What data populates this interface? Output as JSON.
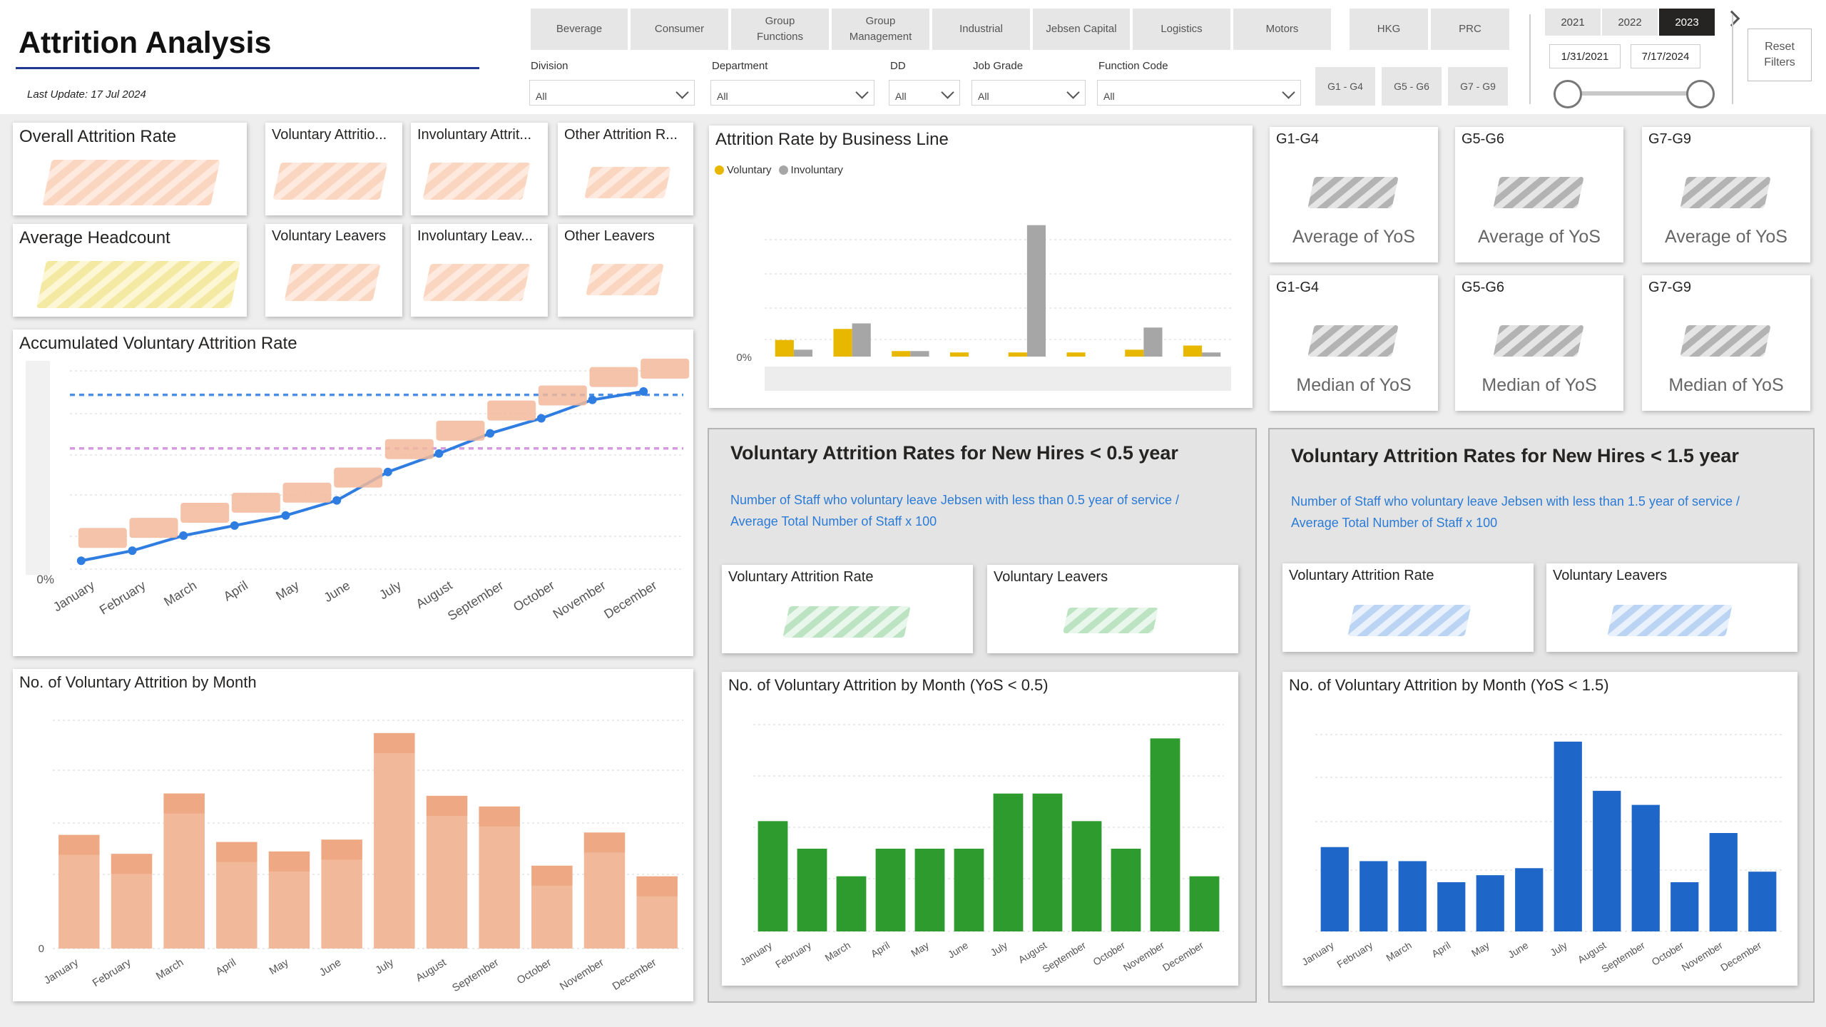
{
  "header": {
    "title": "Attrition Analysis",
    "last_update": "Last Update: 17 Jul 2024"
  },
  "business_tabs": [
    {
      "label": "Beverage"
    },
    {
      "label": "Consumer"
    },
    {
      "label": "Group\nFunctions"
    },
    {
      "label": "Group\nManagement"
    },
    {
      "label": "Industrial"
    },
    {
      "label": "Jebsen Capital"
    },
    {
      "label": "Logistics"
    },
    {
      "label": "Motors"
    },
    {
      "label": "HKG"
    },
    {
      "label": "PRC"
    }
  ],
  "slicers": [
    {
      "label": "Division",
      "value": "All"
    },
    {
      "label": "Department",
      "value": "All"
    },
    {
      "label": "DD",
      "value": "All"
    },
    {
      "label": "Job Grade",
      "value": "All"
    },
    {
      "label": "Function Code",
      "value": "All"
    }
  ],
  "grade_buttons": [
    "G1 - G4",
    "G5 - G6",
    "G7 - G9"
  ],
  "years": [
    {
      "label": "2021",
      "active": false
    },
    {
      "label": "2022",
      "active": false
    },
    {
      "label": "2023",
      "active": true
    }
  ],
  "date_range": {
    "start": "1/31/2021",
    "end": "7/17/2024"
  },
  "reset_label": "Reset\nFilters",
  "kpis": {
    "overall_rate": "Overall Attrition Rate",
    "voluntary_rate": "Voluntary Attritio...",
    "involuntary_rate": "Involuntary Attrit...",
    "other_rate": "Other Attrition R...",
    "avg_headcount": "Average Headcount",
    "voluntary_leavers": "Voluntary Leavers",
    "involuntary_leavers": "Involuntary Leav...",
    "other_leavers": "Other Leavers"
  },
  "yos_cards": [
    {
      "grade": "G1-G4",
      "label": "Average of YoS"
    },
    {
      "grade": "G5-G6",
      "label": "Average of YoS"
    },
    {
      "grade": "G7-G9",
      "label": "Average of YoS"
    },
    {
      "grade": "G1-G4",
      "label": "Median of YoS"
    },
    {
      "grade": "G5-G6",
      "label": "Median of YoS"
    },
    {
      "grade": "G7-G9",
      "label": "Median of YoS"
    }
  ],
  "panels": {
    "half_year": {
      "title": "Voluntary Attrition Rates for New Hires < 0.5 year",
      "desc_line1": "Number of Staff who voluntary leave Jebsen with less than 0.5 year of service /",
      "desc_line2": "Average Total Number of Staff x 100",
      "card1": "Voluntary Attrition Rate",
      "card2": "Voluntary Leavers"
    },
    "one_half_year": {
      "title": "Voluntary Attrition Rates for New Hires < 1.5 year",
      "desc_line1": "Number of Staff who voluntary leave Jebsen with less than 1.5 year of service /",
      "desc_line2": "Average Total Number of Staff x 100",
      "card1": "Voluntary Attrition Rate",
      "card2": "Voluntary Leavers"
    }
  },
  "colors": {
    "voluntary": "#e8b800",
    "involuntary": "#a6a6a6",
    "accum_line": "#2f7de1",
    "peach": "#f2b89a",
    "green": "#2e9b2e",
    "blue": "#1f66c9"
  },
  "chart_data": [
    {
      "id": "business_line",
      "type": "bar",
      "title": "Attrition Rate by Business Line",
      "y_tick": "0%",
      "series": [
        {
          "name": "Voluntary",
          "values": [
            1.2,
            2.0,
            0.4,
            0.3,
            0.3,
            0.3,
            0.5,
            0.8
          ]
        },
        {
          "name": "Involuntary",
          "values": [
            0.5,
            2.4,
            0.4,
            0,
            9.5,
            0,
            2.1,
            0.3
          ]
        }
      ]
    },
    {
      "id": "accum_voluntary",
      "type": "line",
      "title": "Accumulated Voluntary Attrition Rate",
      "categories": [
        "January",
        "February",
        "March",
        "April",
        "May",
        "June",
        "July",
        "August",
        "September",
        "October",
        "November",
        "December"
      ],
      "values": [
        0.5,
        1.1,
        2.0,
        2.6,
        3.2,
        4.1,
        5.8,
        6.9,
        8.1,
        9.0,
        10.1,
        10.6
      ],
      "y_tick": "0%",
      "reference_lines": [
        10.4,
        7.2
      ]
    },
    {
      "id": "vol_by_month",
      "type": "bar",
      "title": "No. of Voluntary Attrition by Month",
      "categories": [
        "January",
        "February",
        "March",
        "April",
        "May",
        "June",
        "July",
        "August",
        "September",
        "October",
        "November",
        "December"
      ],
      "values": [
        96,
        80,
        131,
        90,
        82,
        92,
        182,
        129,
        120,
        70,
        98,
        61
      ],
      "y_tick": "0"
    },
    {
      "id": "vol_by_month_yos05",
      "type": "bar",
      "title": "No. of Voluntary Attrition by Month (YoS < 0.5)",
      "categories": [
        "January",
        "February",
        "March",
        "April",
        "May",
        "June",
        "July",
        "August",
        "September",
        "October",
        "November",
        "December"
      ],
      "values": [
        8,
        6,
        4,
        6,
        6,
        6,
        10,
        10,
        8,
        6,
        14,
        4
      ]
    },
    {
      "id": "vol_by_month_yos15",
      "type": "bar",
      "title": "No. of Voluntary Attrition by Month (YoS < 1.5)",
      "categories": [
        "January",
        "February",
        "March",
        "April",
        "May",
        "June",
        "July",
        "August",
        "September",
        "October",
        "November",
        "December"
      ],
      "values": [
        12,
        10,
        10,
        7,
        8,
        9,
        27,
        20,
        18,
        7,
        14,
        8.5
      ]
    }
  ]
}
